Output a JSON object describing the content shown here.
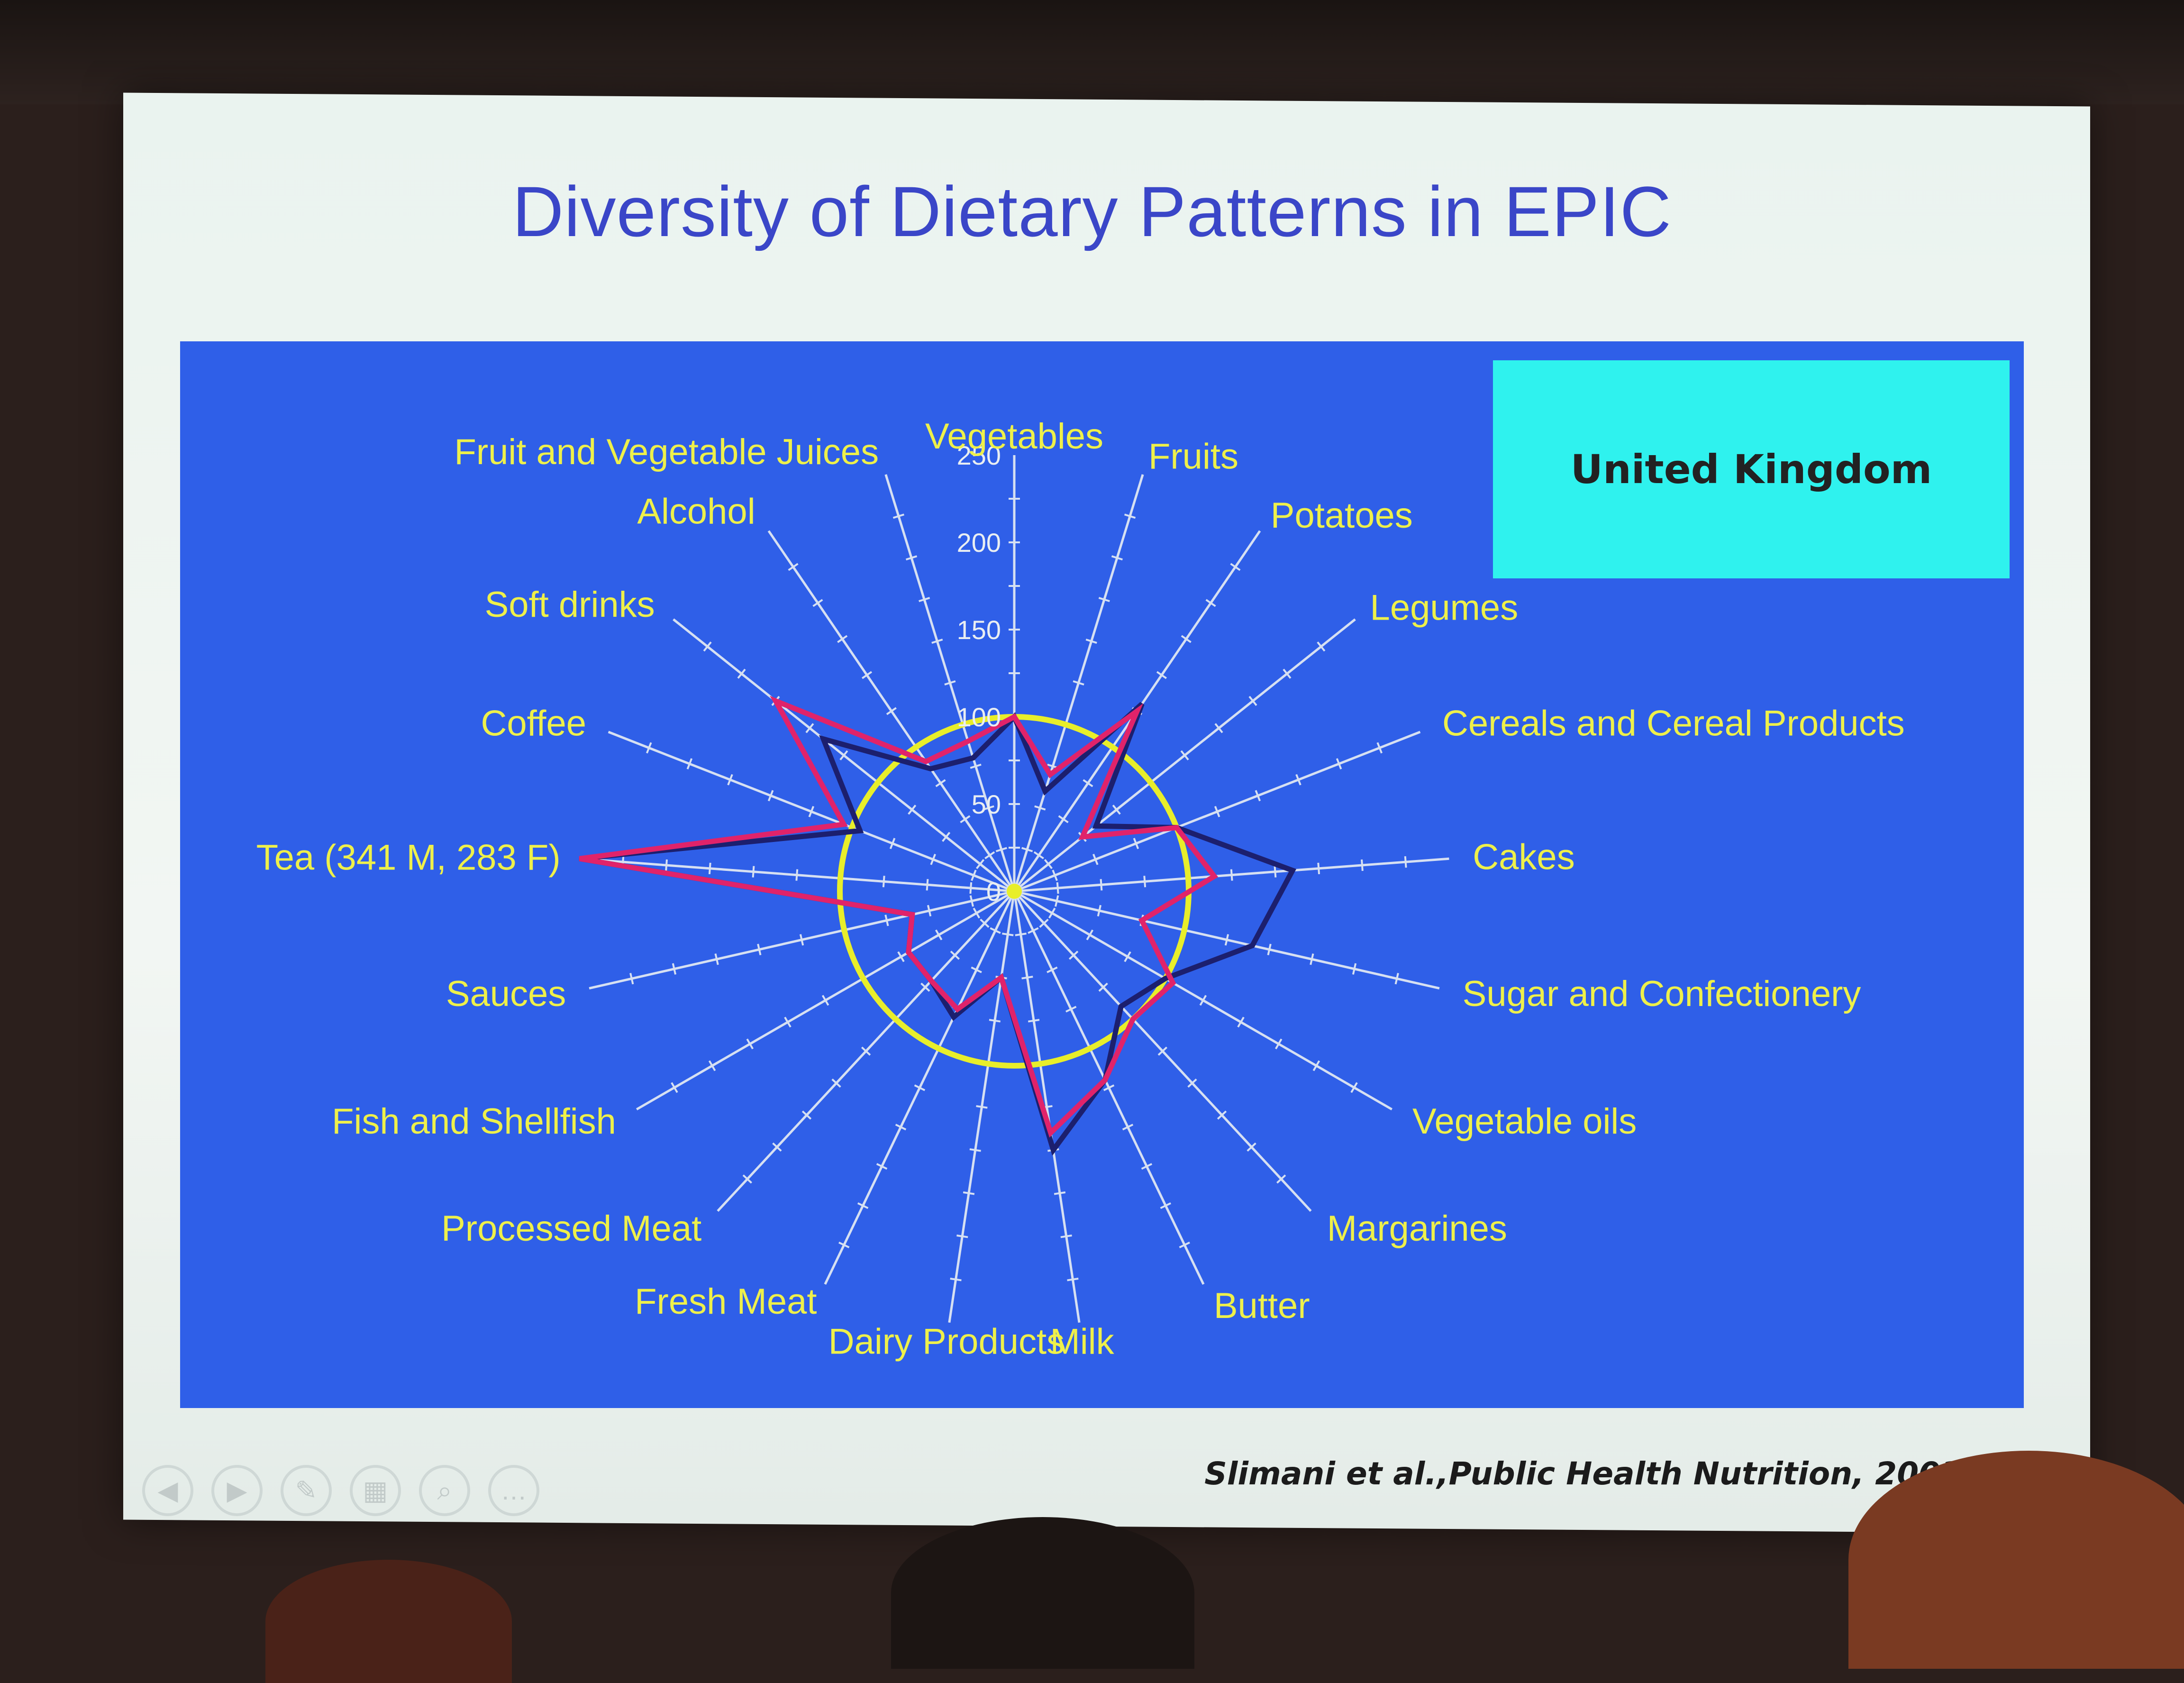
{
  "slide": {
    "title": "Diversity of Dietary Patterns in EPIC",
    "country": "United Kingdom",
    "citation": "Slimani et al.,Public Health Nutrition, 2003"
  },
  "nav": {
    "prev": "◀",
    "next": "▶",
    "pen": "✎",
    "grid": "▦",
    "zoom": "⌕",
    "more": "…"
  },
  "colors": {
    "panel": "#2f5fe8",
    "labels": "#eef04a",
    "reference": "#e8ee2a",
    "men": "#1c1f6e",
    "women": "#e0236a",
    "country_box": "#2ff2ee"
  },
  "chart_data": {
    "type": "radar",
    "title": "Diversity of Dietary Patterns in EPIC",
    "scale": {
      "min": 0,
      "max": 250,
      "ticks": [
        0,
        50,
        100,
        150,
        200,
        250
      ]
    },
    "reference_value": 100,
    "axes": [
      "Vegetables",
      "Fruits",
      "Potatoes",
      "Legumes",
      "Cereals and Cereal Products",
      "Cakes",
      "Sugar and Confectionery",
      "Vegetable oils",
      "Margarines",
      "Butter",
      "Milk",
      "Dairy Products",
      "Fresh Meat",
      "Processed Meat",
      "Fish and Shellfish",
      "Sauces",
      "Tea (341 M, 283 F)",
      "Coffee",
      "Soft drinks",
      "Alcohol",
      "Fruit and Vegetable Juices"
    ],
    "series": [
      {
        "values": [
          100,
          60,
          130,
          60,
          100,
          160,
          140,
          100,
          90,
          120,
          150,
          50,
          80,
          70,
          70,
          60,
          250,
          95,
          140,
          85,
          80
        ]
      },
      {
        "values": [
          100,
          70,
          125,
          50,
          100,
          115,
          75,
          105,
          100,
          120,
          140,
          50,
          75,
          70,
          70,
          60,
          250,
          105,
          175,
          90,
          90
        ]
      }
    ]
  }
}
